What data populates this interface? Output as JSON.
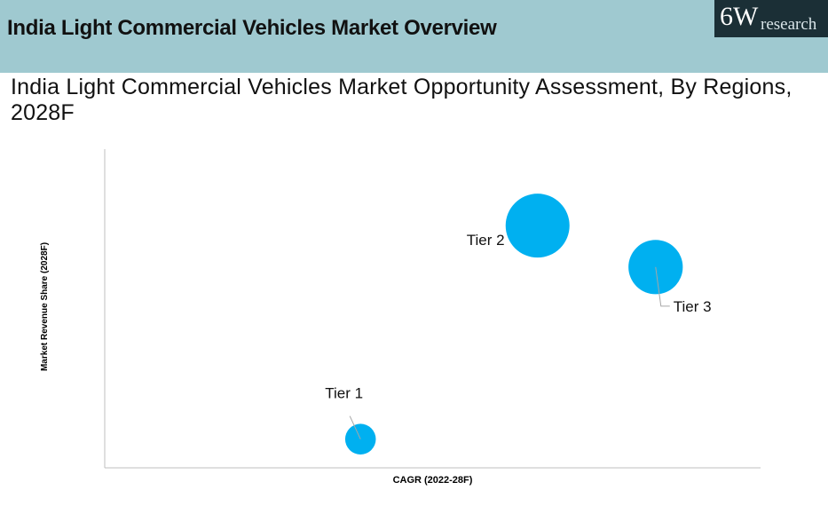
{
  "header": {
    "title": "India Light Commercial Vehicles Market Overview",
    "logo_main": "6W",
    "logo_sub": "research",
    "band_color": "#9fc9d0"
  },
  "chart_data": {
    "type": "scatter",
    "variant": "bubble",
    "title": "India Light Commercial Vehicles Market Opportunity Assessment, By Regions, 2028F",
    "xlabel": "CAGR (2022-28F)",
    "ylabel": "Market Revenue Share (2028F)",
    "xlim": [
      0,
      10
    ],
    "ylim": [
      0,
      10
    ],
    "grid": false,
    "legend": "none",
    "bubble_color": "#00b0f0",
    "series": [
      {
        "name": "Tier 1",
        "x": 3.9,
        "y": 0.9,
        "size": 0.48
      },
      {
        "name": "Tier 2",
        "x": 6.6,
        "y": 7.6,
        "size": 1.0
      },
      {
        "name": "Tier 3",
        "x": 8.4,
        "y": 6.3,
        "size": 0.85
      }
    ]
  }
}
